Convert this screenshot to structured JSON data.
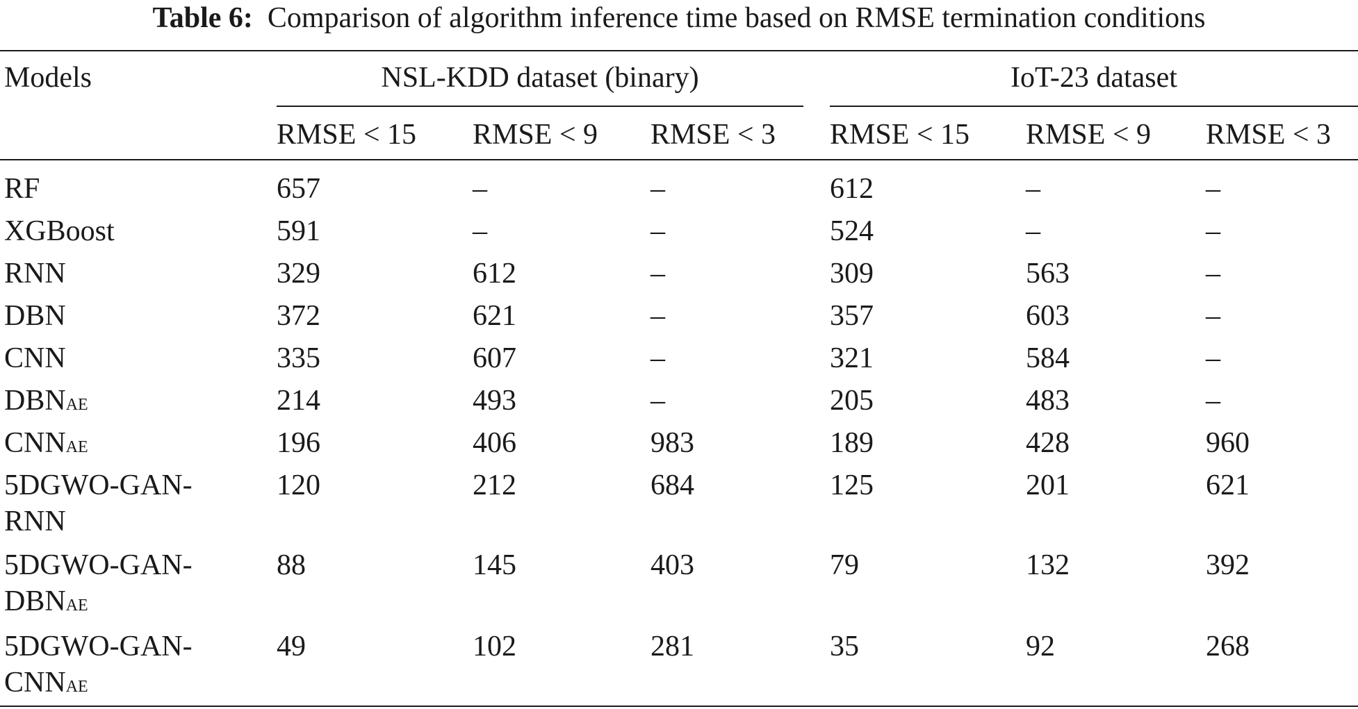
{
  "caption": {
    "label": "Table 6:",
    "text": "Comparison of algorithm inference time based on RMSE termination conditions"
  },
  "table": {
    "models_header": "Models",
    "groups": [
      {
        "label": "NSL-KDD dataset (binary)"
      },
      {
        "label": "IoT-23 dataset"
      }
    ],
    "subheaders": [
      "RMSE < 15",
      "RMSE < 9",
      "RMSE < 3",
      "RMSE < 15",
      "RMSE < 9",
      "RMSE < 3"
    ],
    "rows": [
      {
        "model": [
          "RF"
        ],
        "sub": "",
        "values": [
          "657",
          "–",
          "–",
          "612",
          "–",
          "–"
        ]
      },
      {
        "model": [
          "XGBoost"
        ],
        "sub": "",
        "values": [
          "591",
          "–",
          "–",
          "524",
          "–",
          "–"
        ]
      },
      {
        "model": [
          "RNN"
        ],
        "sub": "",
        "values": [
          "329",
          "612",
          "–",
          "309",
          "563",
          "–"
        ]
      },
      {
        "model": [
          "DBN"
        ],
        "sub": "",
        "values": [
          "372",
          "621",
          "–",
          "357",
          "603",
          "–"
        ]
      },
      {
        "model": [
          "CNN"
        ],
        "sub": "",
        "values": [
          "335",
          "607",
          "–",
          "321",
          "584",
          "–"
        ]
      },
      {
        "model": [
          "DBN"
        ],
        "sub": "AE",
        "values": [
          "214",
          "493",
          "–",
          "205",
          "483",
          "–"
        ]
      },
      {
        "model": [
          "CNN"
        ],
        "sub": "AE",
        "values": [
          "196",
          "406",
          "983",
          "189",
          "428",
          "960"
        ]
      },
      {
        "model": [
          "5DGWO-GAN-",
          "RNN"
        ],
        "sub": "",
        "values": [
          "120",
          "212",
          "684",
          "125",
          "201",
          "621"
        ]
      },
      {
        "model": [
          "5DGWO-GAN-",
          "DBN"
        ],
        "sub": "AE",
        "values": [
          "88",
          "145",
          "403",
          "79",
          "132",
          "392"
        ]
      },
      {
        "model": [
          "5DGWO-GAN-",
          "CNN"
        ],
        "sub": "AE",
        "values": [
          "49",
          "102",
          "281",
          "35",
          "92",
          "268"
        ]
      }
    ]
  }
}
